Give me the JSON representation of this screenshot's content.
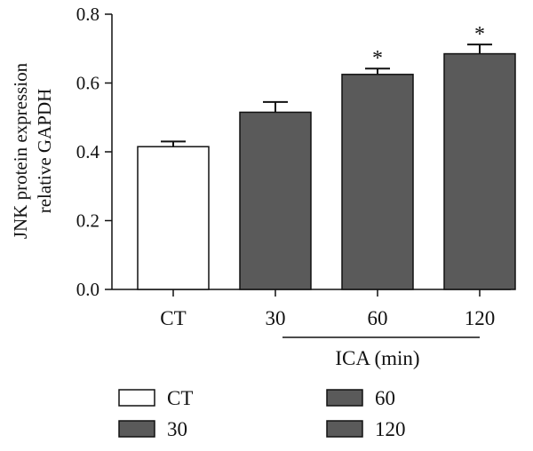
{
  "chart_data": {
    "type": "bar",
    "ylabel_lines": [
      "JNK protein expression",
      "relative GAPDH"
    ],
    "group_label": "ICA (min)",
    "categories": [
      "CT",
      "30",
      "60",
      "120"
    ],
    "values": [
      0.415,
      0.515,
      0.625,
      0.685
    ],
    "errors": [
      0.015,
      0.03,
      0.017,
      0.027
    ],
    "significance": [
      "",
      "",
      "*",
      "*"
    ],
    "ylim": [
      0,
      0.8
    ],
    "yticks": [
      0.0,
      0.2,
      0.4,
      0.6,
      0.8
    ],
    "ytick_labels": [
      "0.0",
      "0.2",
      "0.4",
      "0.6",
      "0.8"
    ],
    "bar_colors": [
      "#ffffff",
      "#5a5a5a",
      "#5a5a5a",
      "#5a5a5a"
    ],
    "legend": [
      {
        "label": "CT",
        "color": "#ffffff"
      },
      {
        "label": "30",
        "color": "#5a5a5a"
      },
      {
        "label": "60",
        "color": "#5a5a5a"
      },
      {
        "label": "120",
        "color": "#5a5a5a"
      }
    ],
    "grid": false,
    "legend_position": "bottom"
  }
}
